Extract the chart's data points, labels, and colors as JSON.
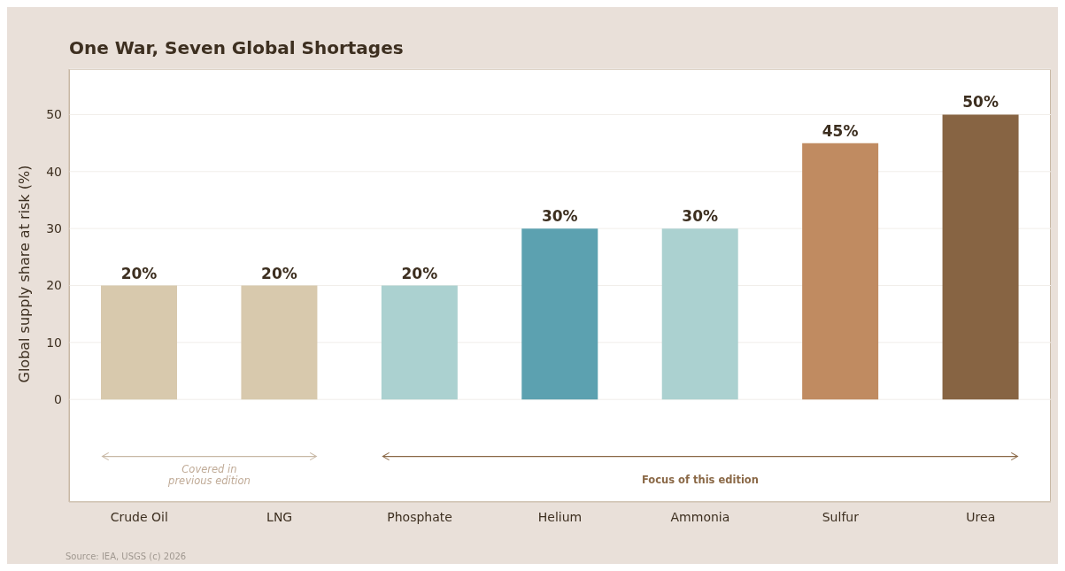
{
  "chart_data": {
    "type": "bar",
    "title": "One War, Seven Global Shortages",
    "ylabel": "Global supply share at risk (%)",
    "categories": [
      "Crude Oil",
      "LNG",
      "Phosphate",
      "Helium",
      "Ammonia",
      "Sulfur",
      "Urea"
    ],
    "values": [
      20,
      20,
      20,
      30,
      30,
      45,
      50
    ],
    "colors": [
      "#d8c9ad",
      "#d8c9ad",
      "#abd1d0",
      "#5ca1b0",
      "#abd1d0",
      "#c08b61",
      "#876443"
    ],
    "value_labels": [
      "20%",
      "20%",
      "20%",
      "30%",
      "30%",
      "45%",
      "50%"
    ],
    "ylim": [
      -18,
      58
    ],
    "yticks": [
      0,
      10,
      20,
      30,
      40,
      50
    ],
    "grid": "y",
    "annotations": [
      "Covered in\nprevious edition",
      "Focus of this edition",
      "Source: IEA, USGS (c) 2026"
    ]
  }
}
